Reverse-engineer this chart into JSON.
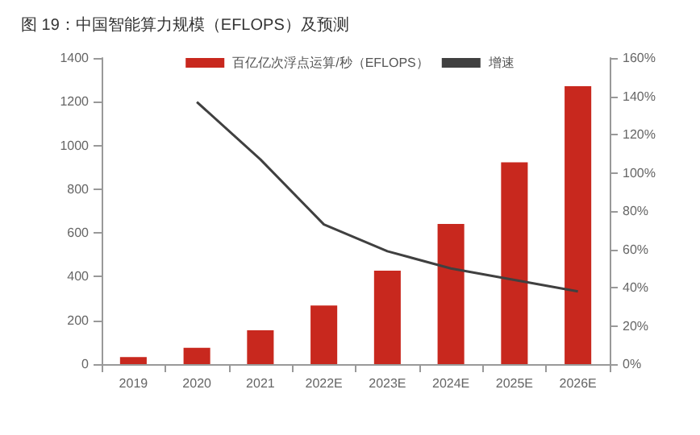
{
  "chart_data": {
    "type": "bar",
    "title": "图 19：中国智能算力规模（EFLOPS）及预测",
    "categories": [
      "2019",
      "2020",
      "2021",
      "2022E",
      "2023E",
      "2024E",
      "2025E",
      "2026E"
    ],
    "series": [
      {
        "name": "百亿亿次浮点运算/秒（EFLOPS）",
        "color": "#c8281e",
        "values": [
          32,
          75,
          155,
          268,
          427,
          641,
          923,
          1271
        ]
      },
      {
        "name": "增速",
        "type": "line",
        "axis": "y2",
        "color": "#404040",
        "values": [
          null,
          137,
          107,
          73,
          59,
          50,
          44,
          38
        ]
      }
    ],
    "ylim": [
      0,
      1400
    ],
    "yticks": [
      0,
      200,
      400,
      600,
      800,
      1000,
      1200,
      1400
    ],
    "y2lim": [
      0,
      160
    ],
    "y2ticks": [
      {
        "value": 0,
        "label": "0%"
      },
      {
        "value": 20,
        "label": "20%"
      },
      {
        "value": 40,
        "label": "40%"
      },
      {
        "value": 60,
        "label": "60%"
      },
      {
        "value": 80,
        "label": "80%"
      },
      {
        "value": 100,
        "label": "100%"
      },
      {
        "value": 120,
        "label": "120%"
      },
      {
        "value": 140,
        "label": "140%"
      },
      {
        "value": 160,
        "label": "160%"
      }
    ],
    "grid": false,
    "legend": "top",
    "marker": "none"
  }
}
